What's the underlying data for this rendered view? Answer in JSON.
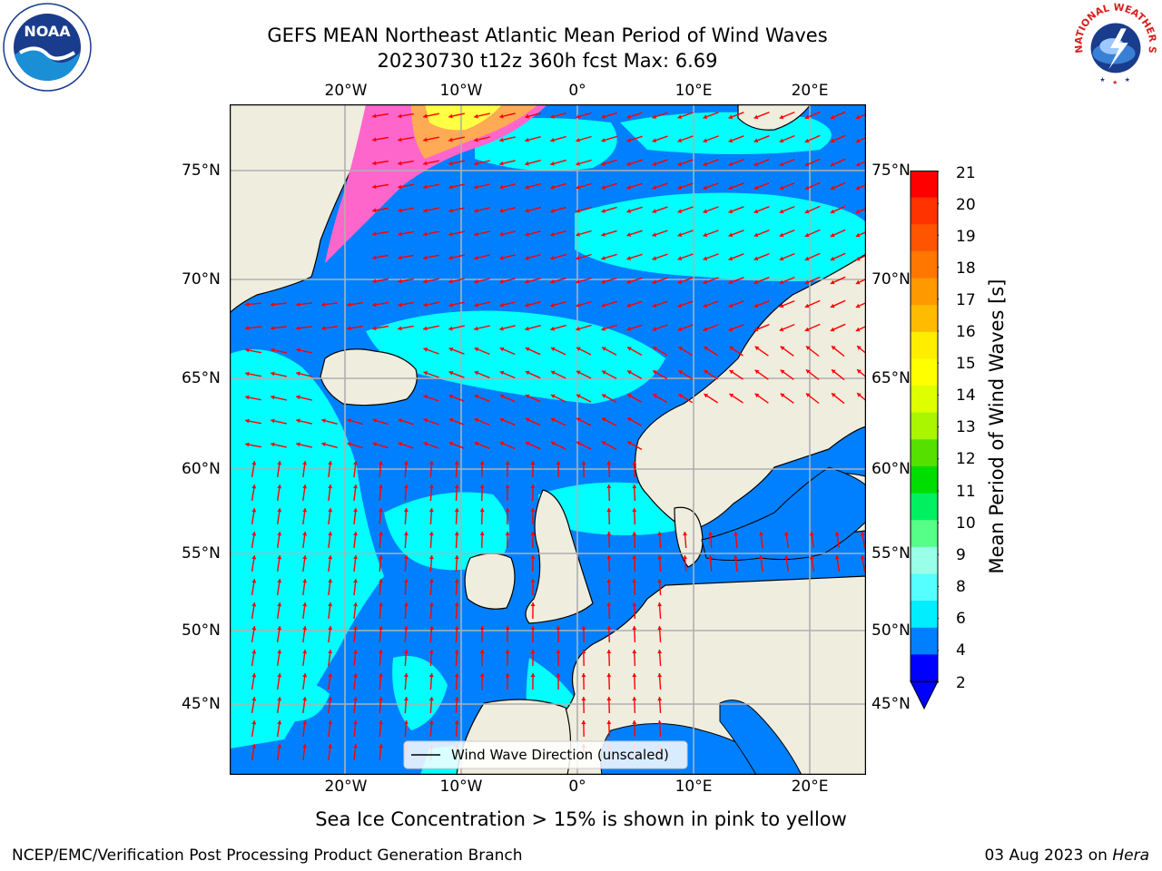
{
  "title": {
    "line1": "GEFS MEAN Northeast Atlantic Mean Period of Wind Waves",
    "line2": "20230730 t12z 360h fcst   Max: 6.69"
  },
  "map": {
    "top_lon_labels": [
      "20°W",
      "10°W",
      "0°",
      "10°E",
      "20°E"
    ],
    "bottom_lon_labels": [
      "20°W",
      "10°W",
      "0°",
      "10°E",
      "20°E"
    ],
    "left_lat_labels": [
      "75°N",
      "70°N",
      "65°N",
      "60°N",
      "55°N",
      "50°N",
      "45°N"
    ],
    "right_lat_labels": [
      "75°N",
      "70°N",
      "65°N",
      "60°N",
      "55°N",
      "50°N",
      "45°N"
    ],
    "legend_label": "Wind Wave Direction (unscaled)"
  },
  "colorbar": {
    "label": "Mean Period of Wind Waves [s]",
    "ticks": [
      "21",
      "20",
      "19",
      "18",
      "17",
      "16",
      "15",
      "14",
      "13",
      "12",
      "11",
      "10",
      "9",
      "8",
      "6",
      "4",
      "2"
    ],
    "colors": [
      "#ff0000",
      "#ff3300",
      "#ff5500",
      "#ff7700",
      "#ff9900",
      "#ffbb00",
      "#ffee00",
      "#ffff00",
      "#ddff00",
      "#aaf500",
      "#55e000",
      "#00dd00",
      "#00f060",
      "#55ff88",
      "#99ffe8",
      "#55ffff",
      "#00eeff",
      "#0080ff",
      "#0000ff"
    ]
  },
  "note": "Sea Ice Concentration > 15% is shown in pink to yellow",
  "footer": {
    "left": "NCEP/EMC/Verification Post Processing Product Generation Branch",
    "date": "03 Aug 2023 on ",
    "machine": "Hera"
  },
  "logos": {
    "noaa": "NOAA",
    "nws": "NATIONAL WEATHER SERVICE"
  }
}
